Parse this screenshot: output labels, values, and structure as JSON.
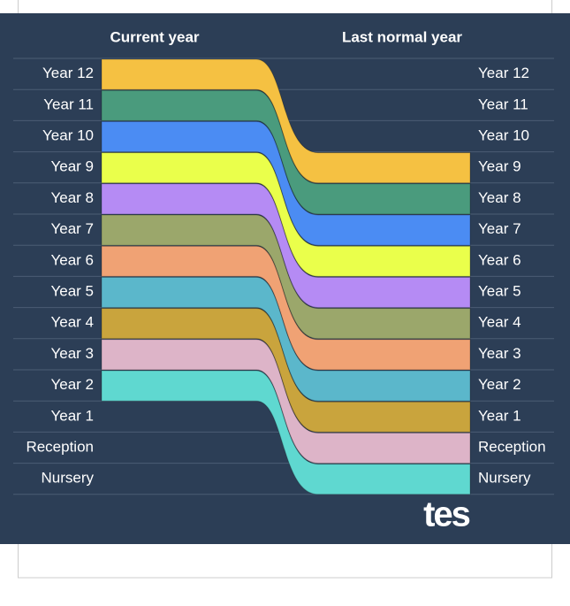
{
  "header": {
    "left": "Current year",
    "right": "Last normal year"
  },
  "rows": [
    "Year 12",
    "Year 11",
    "Year 10",
    "Year 9",
    "Year 8",
    "Year 7",
    "Year 6",
    "Year 5",
    "Year 4",
    "Year 3",
    "Year 2",
    "Year 1",
    "Reception",
    "Nursery"
  ],
  "bands": [
    "#f5c142",
    "#4a9b7d",
    "#4b8cf3",
    "#eaff4b",
    "#b58bf4",
    "#9ba76b",
    "#f0a274",
    "#5bb7cb",
    "#c9a43d",
    "#ddb4c8",
    "#5fd8d0"
  ],
  "logo": "tes"
}
